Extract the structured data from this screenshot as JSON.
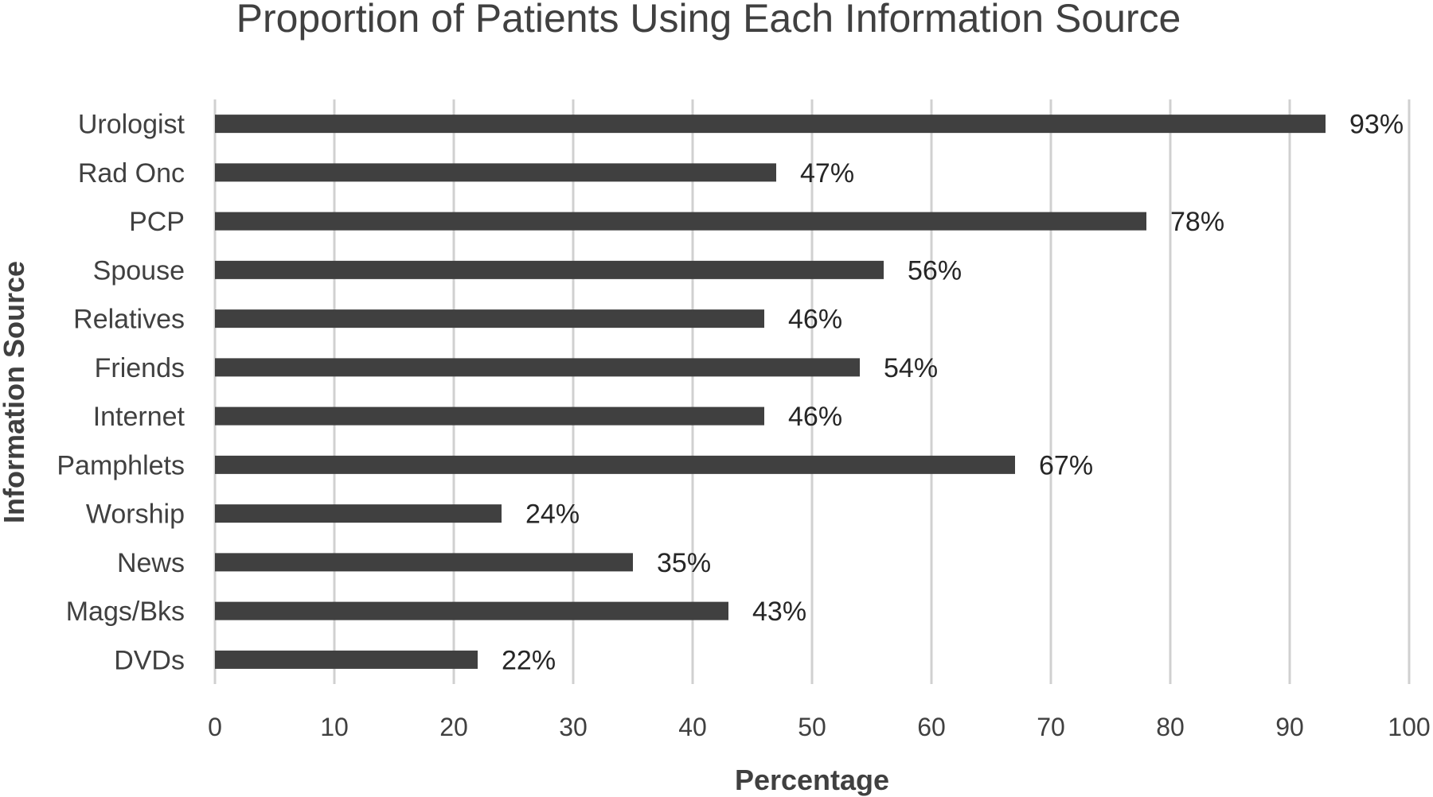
{
  "chart_data": {
    "type": "bar",
    "orientation": "horizontal",
    "title": "Proportion of Patients Using Each Information Source",
    "xlabel": "Percentage",
    "ylabel": "Information Source",
    "categories": [
      "Urologist",
      "Rad Onc",
      "PCP",
      "Spouse",
      "Relatives",
      "Friends",
      "Internet",
      "Pamphlets",
      "Worship",
      "News",
      "Mags/Bks",
      "DVDs"
    ],
    "values": [
      93,
      47,
      78,
      56,
      46,
      54,
      46,
      67,
      24,
      35,
      43,
      22
    ],
    "data_labels": [
      "93%",
      "47%",
      "78%",
      "56%",
      "46%",
      "54%",
      "46%",
      "67%",
      "24%",
      "35%",
      "43%",
      "22%"
    ],
    "xlim": [
      0,
      100
    ],
    "xticks": [
      0,
      10,
      20,
      30,
      40,
      50,
      60,
      70,
      80,
      90,
      100
    ],
    "grid": "vertical",
    "legend": "none",
    "bar_color": "#404040"
  }
}
